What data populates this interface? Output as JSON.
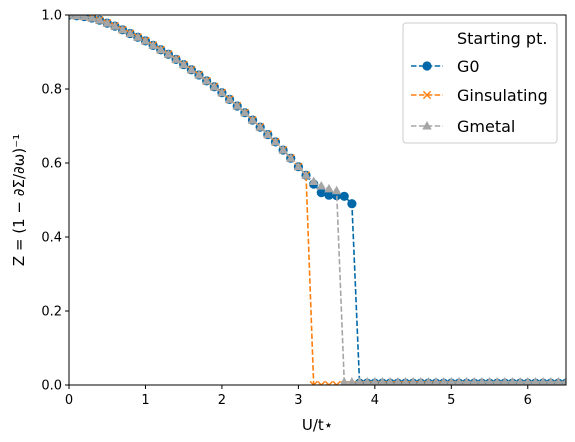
{
  "chart_data": {
    "type": "line",
    "xlabel": "U/t⋆",
    "ylabel": "Z = (1 − ∂Σ/∂ω)⁻¹",
    "xlim": [
      0,
      6.5
    ],
    "ylim": [
      0,
      1.0
    ],
    "xticks": [
      "0",
      "1",
      "2",
      "3",
      "4",
      "5",
      "6"
    ],
    "yticks": [
      "0.0",
      "0.2",
      "0.4",
      "0.6",
      "0.8",
      "1.0"
    ],
    "grid": false,
    "legend": {
      "title": "Starting pt.",
      "placement": "top-right",
      "entries": [
        "G0",
        "Ginsulating",
        "Gmetal"
      ]
    },
    "series": [
      {
        "name": "G0",
        "color": "#0068a8",
        "marker": "circle",
        "x": [
          0,
          0.1,
          0.2,
          0.3,
          0.4,
          0.5,
          0.6,
          0.7,
          0.8,
          0.9,
          1.0,
          1.1,
          1.2,
          1.3,
          1.4,
          1.5,
          1.6,
          1.7,
          1.8,
          1.9,
          2.0,
          2.1,
          2.2,
          2.3,
          2.4,
          2.5,
          2.6,
          2.7,
          2.8,
          2.9,
          3.0,
          3.1,
          3.2,
          3.3,
          3.4,
          3.5,
          3.6,
          3.7,
          3.8,
          3.9,
          4.0,
          4.1,
          4.2,
          4.3,
          4.4,
          4.5,
          4.6,
          4.7,
          4.8,
          4.9,
          5.0,
          5.1,
          5.2,
          5.3,
          5.4,
          5.5,
          5.6,
          5.7,
          5.8,
          5.9,
          6.0,
          6.1,
          6.2,
          6.3,
          6.4,
          6.5
        ],
        "y": [
          1.0,
          0.998,
          0.996,
          0.992,
          0.986,
          0.978,
          0.97,
          0.96,
          0.95,
          0.94,
          0.93,
          0.918,
          0.906,
          0.894,
          0.88,
          0.866,
          0.852,
          0.838,
          0.822,
          0.806,
          0.79,
          0.772,
          0.754,
          0.736,
          0.716,
          0.697,
          0.677,
          0.657,
          0.635,
          0.613,
          0.59,
          0.567,
          0.543,
          0.52,
          0.513,
          0.512,
          0.51,
          0.49,
          0.005,
          0.005,
          0.005,
          0.005,
          0.005,
          0.005,
          0.005,
          0.005,
          0.005,
          0.005,
          0.005,
          0.005,
          0.005,
          0.005,
          0.005,
          0.005,
          0.005,
          0.005,
          0.005,
          0.005,
          0.005,
          0.005,
          0.005,
          0.005,
          0.005,
          0.005,
          0.005,
          0.005
        ]
      },
      {
        "name": "Ginsulating",
        "color": "#ff7f0e",
        "marker": "x",
        "x": [
          0,
          0.1,
          0.2,
          0.3,
          0.4,
          0.5,
          0.6,
          0.7,
          0.8,
          0.9,
          1.0,
          1.1,
          1.2,
          1.3,
          1.4,
          1.5,
          1.6,
          1.7,
          1.8,
          1.9,
          2.0,
          2.1,
          2.2,
          2.3,
          2.4,
          2.5,
          2.6,
          2.7,
          2.8,
          2.9,
          3.0,
          3.1,
          3.2,
          3.3,
          3.4,
          3.5,
          3.6,
          3.7,
          3.8,
          3.9,
          4.0,
          4.1,
          4.2,
          4.3,
          4.4,
          4.5,
          4.6,
          4.7,
          4.8,
          4.9,
          5.0,
          5.1,
          5.2,
          5.3,
          5.4,
          5.5,
          5.6,
          5.7,
          5.8,
          5.9,
          6.0,
          6.1,
          6.2,
          6.3,
          6.4,
          6.5
        ],
        "y": [
          1.0,
          0.998,
          0.996,
          0.992,
          0.986,
          0.978,
          0.97,
          0.96,
          0.95,
          0.94,
          0.93,
          0.918,
          0.906,
          0.894,
          0.88,
          0.866,
          0.852,
          0.838,
          0.822,
          0.806,
          0.79,
          0.772,
          0.754,
          0.736,
          0.716,
          0.697,
          0.677,
          0.657,
          0.635,
          0.613,
          0.59,
          0.567,
          0.0,
          0.0,
          0.0,
          0.0,
          0.0,
          0.0,
          0.0,
          0.0,
          0.0,
          0.0,
          0.0,
          0.0,
          0.0,
          0.0,
          0.0,
          0.0,
          0.0,
          0.0,
          0.0,
          0.0,
          0.0,
          0.0,
          0.0,
          0.0,
          0.0,
          0.0,
          0.0,
          0.0,
          0.0,
          0.0,
          0.0,
          0.0,
          0.0,
          0.0
        ]
      },
      {
        "name": "Gmetal",
        "color": "#a6a6a6",
        "marker": "triangle",
        "x": [
          0,
          0.1,
          0.2,
          0.3,
          0.4,
          0.5,
          0.6,
          0.7,
          0.8,
          0.9,
          1.0,
          1.1,
          1.2,
          1.3,
          1.4,
          1.5,
          1.6,
          1.7,
          1.8,
          1.9,
          2.0,
          2.1,
          2.2,
          2.3,
          2.4,
          2.5,
          2.6,
          2.7,
          2.8,
          2.9,
          3.0,
          3.1,
          3.2,
          3.3,
          3.4,
          3.5,
          3.6,
          3.7,
          3.8,
          3.9,
          4.0,
          4.1,
          4.2,
          4.3,
          4.4,
          4.5,
          4.6,
          4.7,
          4.8,
          4.9,
          5.0,
          5.1,
          5.2,
          5.3,
          5.4,
          5.5,
          5.6,
          5.7,
          5.8,
          5.9,
          6.0,
          6.1,
          6.2,
          6.3,
          6.4,
          6.5
        ],
        "y": [
          1.0,
          0.998,
          0.996,
          0.992,
          0.986,
          0.978,
          0.97,
          0.96,
          0.95,
          0.94,
          0.93,
          0.918,
          0.906,
          0.894,
          0.88,
          0.866,
          0.852,
          0.838,
          0.822,
          0.806,
          0.79,
          0.772,
          0.754,
          0.736,
          0.716,
          0.697,
          0.677,
          0.657,
          0.635,
          0.613,
          0.59,
          0.567,
          0.55,
          0.538,
          0.53,
          0.525,
          0.008,
          0.008,
          0.008,
          0.008,
          0.008,
          0.008,
          0.008,
          0.008,
          0.008,
          0.008,
          0.008,
          0.008,
          0.008,
          0.008,
          0.008,
          0.008,
          0.008,
          0.008,
          0.008,
          0.008,
          0.008,
          0.008,
          0.008,
          0.008,
          0.008,
          0.008,
          0.008,
          0.008,
          0.008,
          0.008
        ]
      }
    ]
  }
}
